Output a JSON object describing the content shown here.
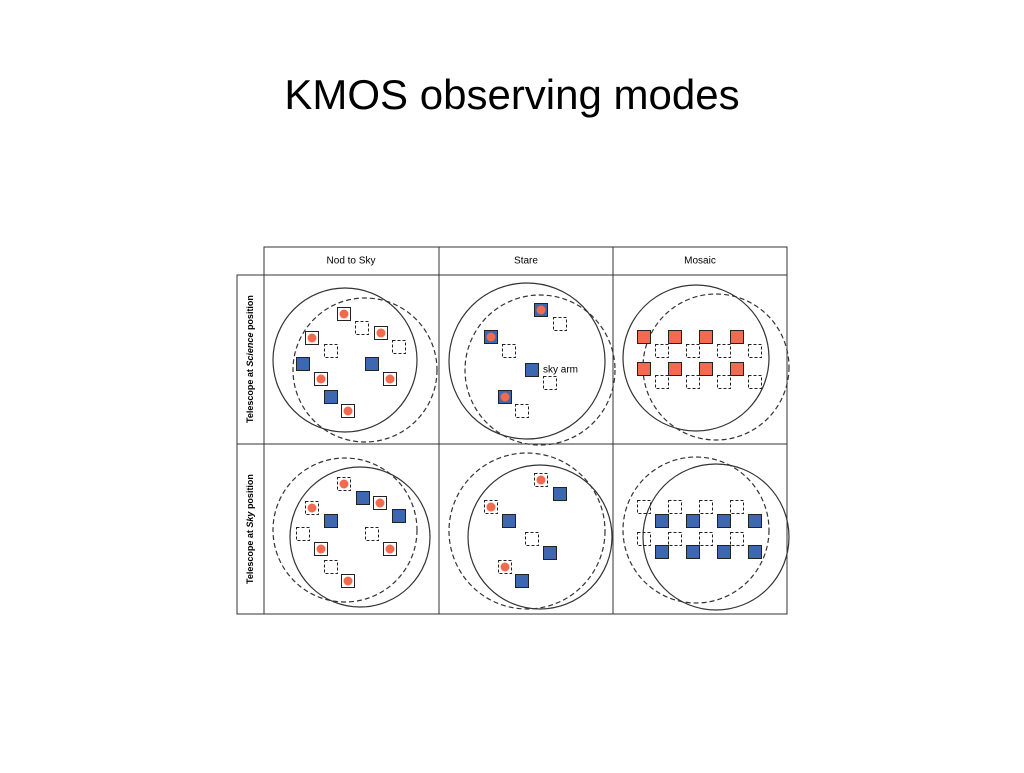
{
  "title": "KMOS observing modes",
  "table": {
    "columns": [
      "Nod to Sky",
      "Stare",
      "Mosaic"
    ],
    "rows": [
      {
        "parts": [
          "Telescope at ",
          "Science",
          " position"
        ]
      },
      {
        "parts": [
          "Telescope at ",
          "Sky",
          " position"
        ]
      }
    ],
    "annotation": "sky arm"
  }
}
